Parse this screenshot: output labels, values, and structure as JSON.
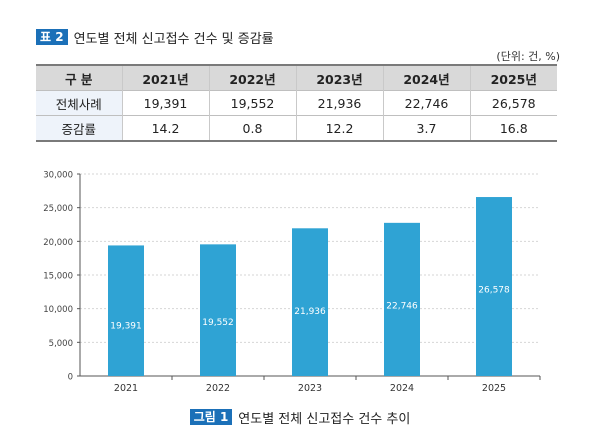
{
  "table": {
    "badge": "표 2",
    "title": "연도별 전체 신고접수 건수 및 증감률",
    "unit": "(단위: 건, %)",
    "headers": [
      "구 분",
      "2021년",
      "2022년",
      "2023년",
      "2024년",
      "2025년"
    ],
    "rows": [
      [
        "전체사례",
        "19,391",
        "19,552",
        "21,936",
        "22,746",
        "26,578"
      ],
      [
        "증감률",
        "14.2",
        "0.8",
        "12.2",
        "3.7",
        "16.8"
      ]
    ]
  },
  "figure": {
    "badge": "그림 1",
    "caption": "연도별 전체 신고접수 건수 추이"
  },
  "chart_data": {
    "type": "bar",
    "categories": [
      "2021",
      "2022",
      "2023",
      "2024",
      "2025"
    ],
    "values": [
      19391,
      19552,
      21936,
      22746,
      26578
    ],
    "data_labels": [
      "19,391",
      "19,552",
      "21,936",
      "22,746",
      "26,578"
    ],
    "y_ticks": [
      "0",
      "5,000",
      "10,000",
      "15,000",
      "20,000",
      "25,000",
      "30,000"
    ],
    "ylim": [
      0,
      30000
    ],
    "grid": true,
    "title": "",
    "xlabel": "",
    "ylabel": "",
    "bar_color": "#2fa3d4"
  }
}
